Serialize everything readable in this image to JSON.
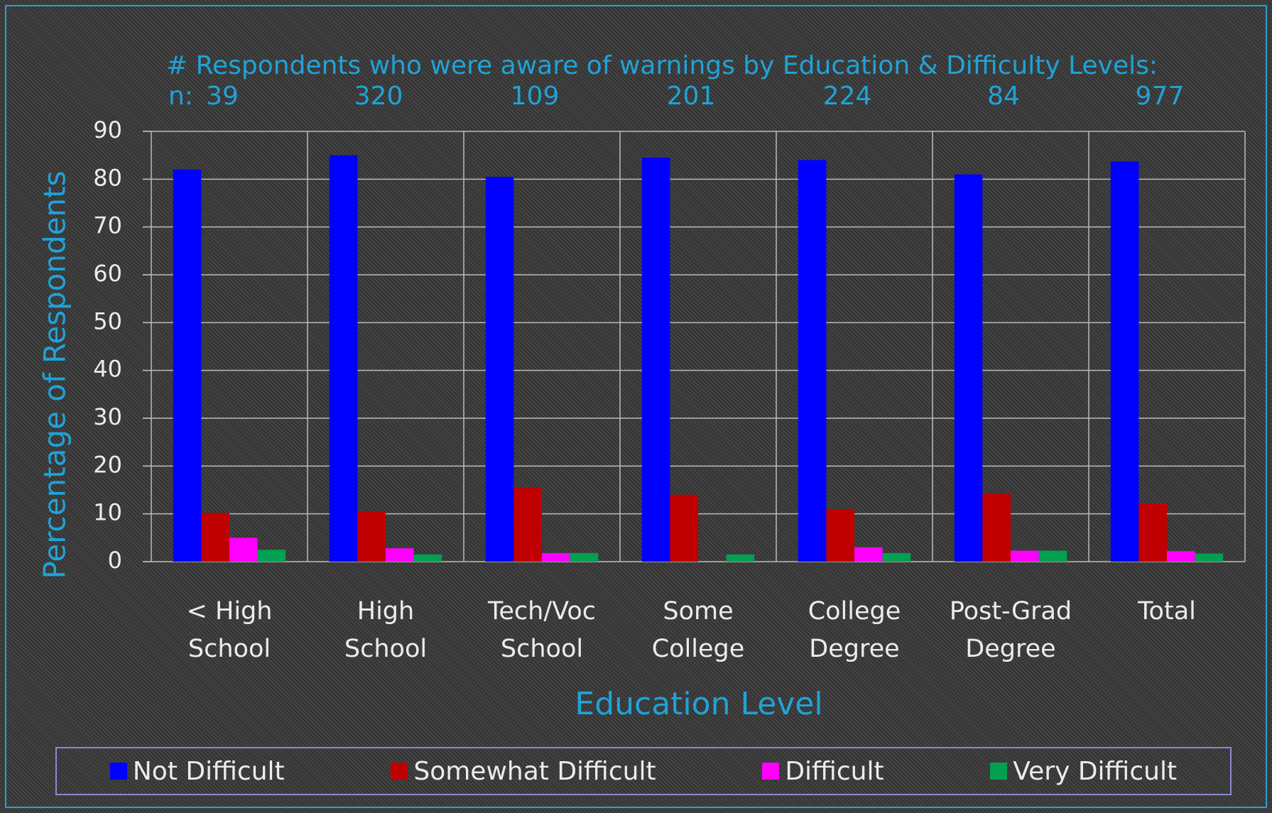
{
  "chart_data": {
    "type": "bar",
    "title": "# Respondents who were aware of warnings by Education & Difficulty Levels:",
    "n_label": "n:",
    "n_values": [
      39,
      320,
      109,
      201,
      224,
      84,
      977
    ],
    "categories": [
      "< High School",
      "High School",
      "Tech/Voc School",
      "Some College",
      "College Degree",
      "Post-Grad Degree",
      "Total"
    ],
    "series": [
      {
        "name": "Not Difficult",
        "color": "#0000ff",
        "values": [
          82,
          85,
          80.5,
          84.5,
          84,
          81,
          83.7
        ]
      },
      {
        "name": "Somewhat Difficult",
        "color": "#c00000",
        "values": [
          10.2,
          10.5,
          15.5,
          14,
          11,
          14.2,
          12.2
        ]
      },
      {
        "name": "Difficult",
        "color": "#ff00ff",
        "values": [
          5,
          2.8,
          1.8,
          0,
          3,
          2.3,
          2.2
        ]
      },
      {
        "name": "Very Difficult",
        "color": "#00a050",
        "values": [
          2.5,
          1.5,
          1.8,
          1.5,
          1.8,
          2.3,
          1.7
        ]
      }
    ],
    "x_label": "Education Level",
    "y_label": "Percentage of Respondents",
    "ylim": [
      0,
      90
    ],
    "yticks": [
      0,
      10,
      20,
      30,
      40,
      50,
      60,
      70,
      80,
      90
    ],
    "grid": true,
    "legend": "bottom"
  }
}
